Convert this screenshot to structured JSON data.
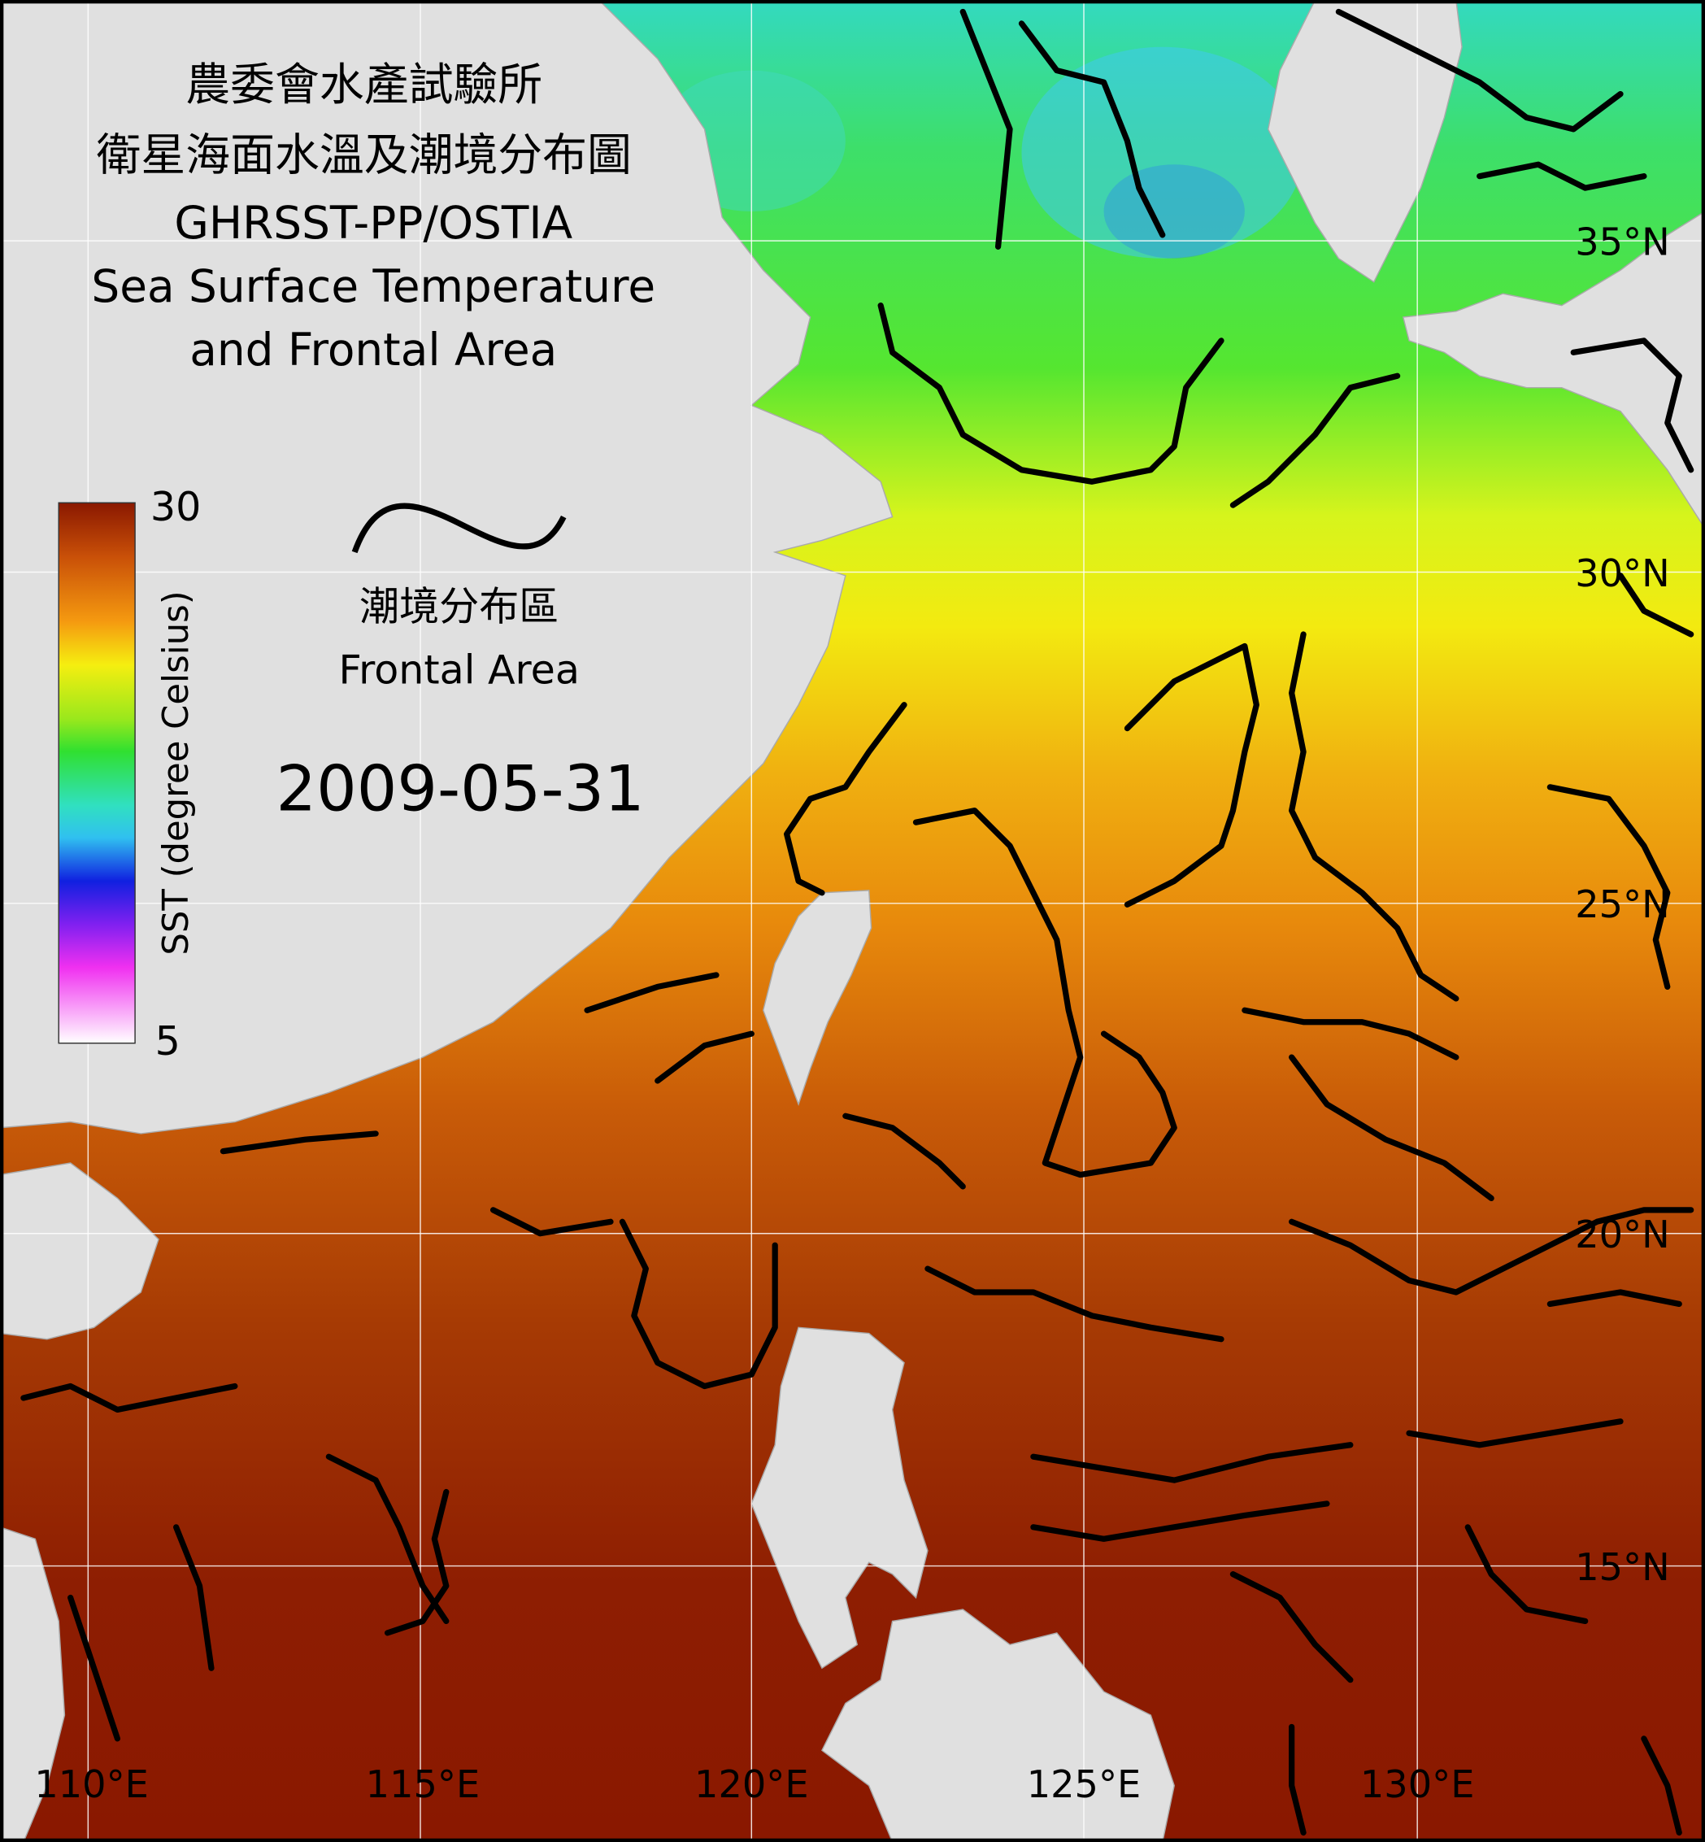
{
  "title": {
    "lines": [
      "農委會水產試驗所",
      "衛星海面水溫及潮境分布圖",
      "GHRSST-PP/OSTIA",
      "Sea Surface Temperature",
      "and Frontal Area"
    ]
  },
  "colorbar": {
    "max": "30",
    "min": "5",
    "label": "SST (degree Celsius)"
  },
  "legend": {
    "label_zh": "潮境分布區",
    "label_en": "Frontal Area"
  },
  "date": "2009-05-31",
  "grid": {
    "lat_labels": [
      "35°N",
      "30°N",
      "25°N",
      "20°N",
      "15°N"
    ],
    "lon_labels": [
      "110°E",
      "115°E",
      "120°E",
      "125°E",
      "130°E"
    ]
  }
}
